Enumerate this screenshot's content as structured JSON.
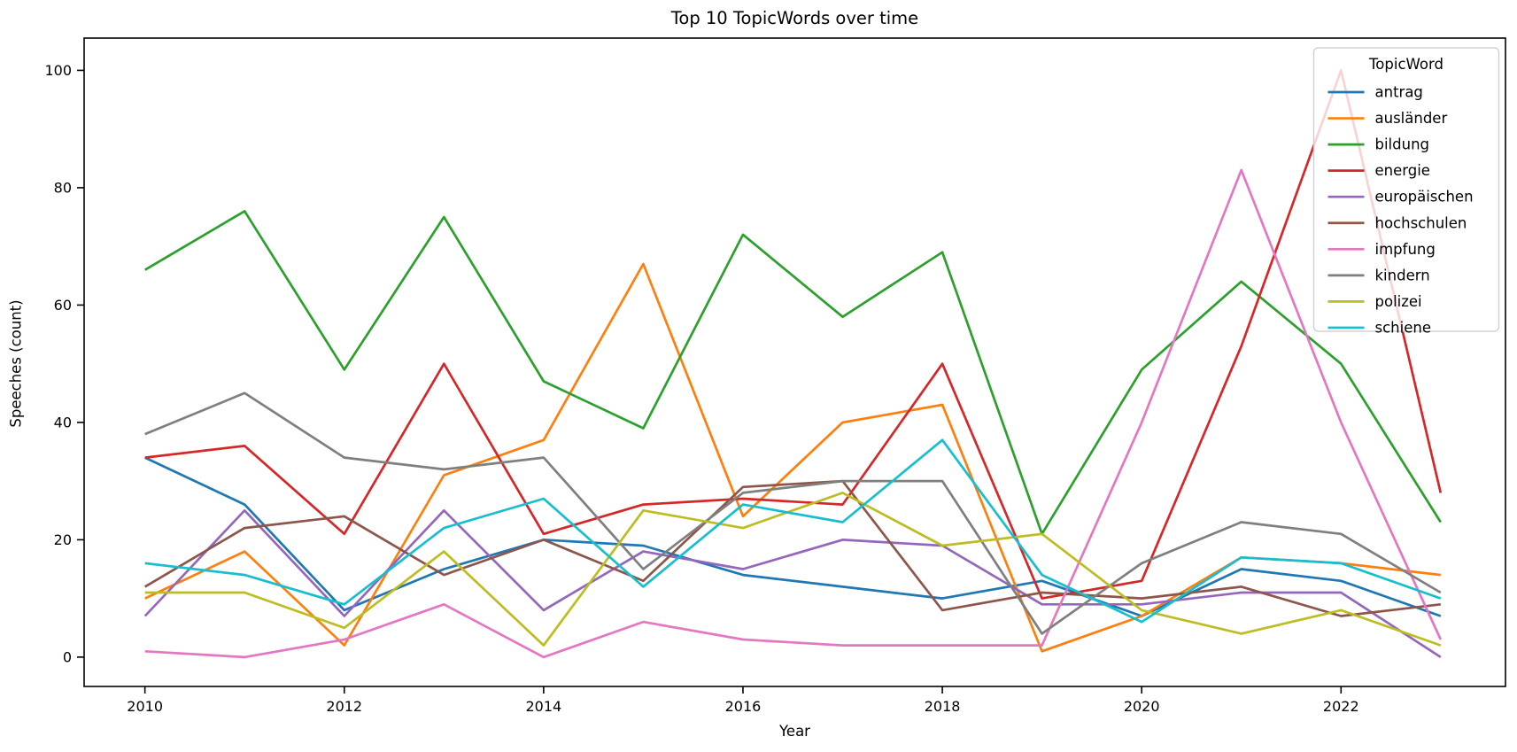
{
  "title": "Top 10 TopicWords over time",
  "chart_data": {
    "type": "line",
    "title": "Top 10 TopicWords over time",
    "xlabel": "Year",
    "ylabel": "Speeches (count)",
    "x": [
      2010,
      2011,
      2012,
      2013,
      2014,
      2015,
      2016,
      2017,
      2018,
      2019,
      2020,
      2021,
      2022,
      2023
    ],
    "xticks": [
      2010,
      2012,
      2014,
      2016,
      2018,
      2020,
      2022
    ],
    "yticks": [
      0,
      20,
      40,
      60,
      80,
      100
    ],
    "xlim": [
      2009.39,
      2023.65
    ],
    "ylim": [
      -5,
      105.5
    ],
    "grid": false,
    "legend_title": "TopicWord",
    "legend_position": "upper right",
    "axis_color": "#000000",
    "legend_border_color": "#cccccc",
    "series": [
      {
        "name": "antrag",
        "color": "#1f77b4",
        "values": [
          34,
          26,
          8,
          15,
          20,
          19,
          14,
          12,
          10,
          13,
          7,
          15,
          13,
          7
        ]
      },
      {
        "name": "ausländer",
        "color": "#ff7f0e",
        "values": [
          10,
          18,
          2,
          31,
          37,
          67,
          24,
          40,
          43,
          1,
          7,
          17,
          16,
          14
        ]
      },
      {
        "name": "bildung",
        "color": "#2ca02c",
        "values": [
          66,
          76,
          49,
          75,
          47,
          39,
          72,
          58,
          69,
          21,
          49,
          64,
          50,
          23
        ]
      },
      {
        "name": "energie",
        "color": "#d62728",
        "values": [
          34,
          36,
          21,
          50,
          21,
          26,
          27,
          26,
          50,
          10,
          13,
          53,
          100,
          28
        ]
      },
      {
        "name": "europäischen",
        "color": "#9467bd",
        "values": [
          7,
          25,
          7,
          25,
          8,
          18,
          15,
          20,
          19,
          9,
          9,
          11,
          11,
          0
        ]
      },
      {
        "name": "hochschulen",
        "color": "#8c564b",
        "values": [
          12,
          22,
          24,
          14,
          20,
          13,
          29,
          30,
          8,
          11,
          10,
          12,
          7,
          9
        ]
      },
      {
        "name": "impfung",
        "color": "#e377c2",
        "values": [
          1,
          0,
          3,
          9,
          0,
          6,
          3,
          2,
          2,
          2,
          40,
          83,
          40,
          3
        ]
      },
      {
        "name": "kindern",
        "color": "#7f7f7f",
        "values": [
          38,
          45,
          34,
          32,
          34,
          15,
          28,
          30,
          30,
          4,
          16,
          23,
          21,
          11
        ]
      },
      {
        "name": "polizei",
        "color": "#bcbd22",
        "values": [
          11,
          11,
          5,
          18,
          2,
          25,
          22,
          28,
          19,
          21,
          8,
          4,
          8,
          2
        ]
      },
      {
        "name": "schiene",
        "color": "#17becf",
        "values": [
          16,
          14,
          9,
          22,
          27,
          12,
          26,
          23,
          37,
          14,
          6,
          17,
          16,
          10
        ]
      }
    ]
  }
}
